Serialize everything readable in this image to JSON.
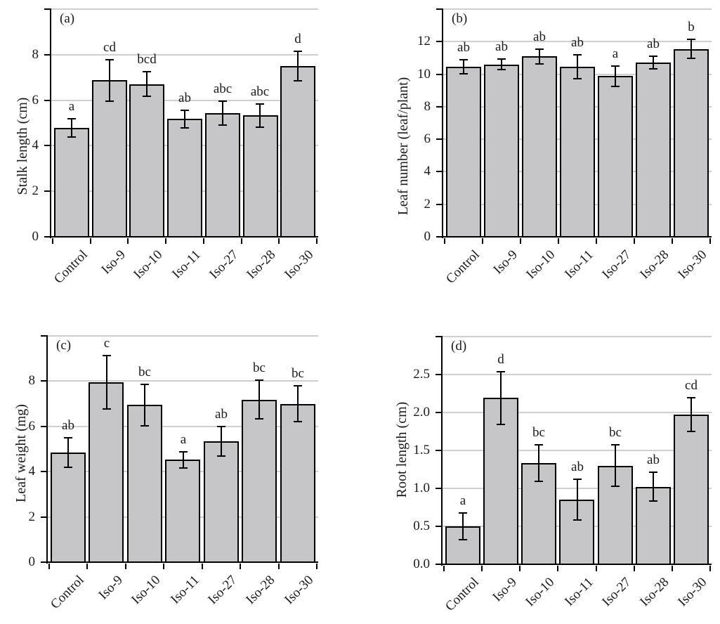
{
  "figure": {
    "description": "Four-panel bar chart comparing plant growth traits of Control vs isolate treatments, with standard-error bars and significance letters",
    "colors": {
      "background": "#ffffff",
      "bar_fill": "#c6c6c9",
      "bar_border": "#000000",
      "grid": "#cfcfcf",
      "text": "#1a1a1a"
    }
  },
  "chart_data": [
    {
      "type": "bar",
      "panel": "(a)",
      "ylabel": "Stalk length (cm)",
      "xlabel": "",
      "categories": [
        "Control",
        "Iso-9",
        "Iso-10",
        "Iso-11",
        "Iso-27",
        "Iso-28",
        "Iso-30"
      ],
      "values": [
        4.78,
        6.87,
        6.7,
        5.18,
        5.43,
        5.33,
        7.5
      ],
      "errors": [
        0.4,
        0.9,
        0.54,
        0.39,
        0.53,
        0.51,
        0.65
      ],
      "sig_letters": [
        "a",
        "cd",
        "bcd",
        "ab",
        "abc",
        "abc",
        "d"
      ],
      "ylim": [
        0,
        10
      ],
      "yticks": [
        0,
        2,
        4,
        6,
        8
      ],
      "ytick_labels": [
        "0",
        "2",
        "4",
        "6",
        "8"
      ],
      "gridlines": [
        2,
        4,
        6,
        8,
        10
      ],
      "grid": "horizontal",
      "legend": "none",
      "error_bars": "symmetric, capped"
    },
    {
      "type": "bar",
      "panel": "(b)",
      "ylabel": "Leaf number (leaf/plant)",
      "xlabel": "",
      "categories": [
        "Control",
        "Iso-9",
        "Iso-10",
        "Iso-11",
        "Iso-27",
        "Iso-28",
        "Iso-30"
      ],
      "values": [
        10.45,
        10.6,
        11.1,
        10.45,
        9.88,
        10.72,
        11.55
      ],
      "errors": [
        0.42,
        0.33,
        0.45,
        0.72,
        0.62,
        0.4,
        0.58
      ],
      "sig_letters": [
        "ab",
        "ab",
        "ab",
        "ab",
        "a",
        "ab",
        "b"
      ],
      "ylim": [
        0,
        14
      ],
      "yticks": [
        0,
        2,
        4,
        6,
        8,
        10,
        12
      ],
      "ytick_labels": [
        "0",
        "2",
        "4",
        "6",
        "8",
        "10",
        "12"
      ],
      "gridlines": [
        2,
        4,
        6,
        8,
        10,
        12,
        14
      ],
      "grid": "horizontal",
      "legend": "none",
      "error_bars": "symmetric, capped"
    },
    {
      "type": "bar",
      "panel": "(c)",
      "ylabel": "Leaf weight (mg)",
      "xlabel": "",
      "categories": [
        "Control",
        "Iso-9",
        "Iso-10",
        "Iso-11",
        "Iso-27",
        "Iso-28",
        "Iso-30"
      ],
      "values": [
        4.85,
        7.95,
        6.95,
        4.52,
        5.33,
        7.18,
        7.0
      ],
      "errors": [
        0.65,
        1.18,
        0.92,
        0.37,
        0.65,
        0.85,
        0.78
      ],
      "sig_letters": [
        "ab",
        "c",
        "bc",
        "a",
        "ab",
        "bc",
        "bc"
      ],
      "ylim": [
        0,
        10
      ],
      "yticks": [
        0,
        2,
        4,
        6,
        8
      ],
      "ytick_labels": [
        "0",
        "2",
        "4",
        "6",
        "8"
      ],
      "gridlines": [
        2,
        4,
        6,
        8,
        10
      ],
      "grid": "horizontal",
      "legend": "none",
      "error_bars": "symmetric, capped"
    },
    {
      "type": "bar",
      "panel": "(d)",
      "ylabel": "Root length (cm)",
      "xlabel": "",
      "categories": [
        "Control",
        "Iso-9",
        "Iso-10",
        "Iso-11",
        "Iso-27",
        "Iso-28",
        "Iso-30"
      ],
      "values": [
        0.5,
        2.19,
        1.33,
        0.85,
        1.3,
        1.02,
        1.97
      ],
      "errors": [
        0.18,
        0.35,
        0.24,
        0.27,
        0.27,
        0.19,
        0.22
      ],
      "sig_letters": [
        "a",
        "d",
        "bc",
        "ab",
        "bc",
        "ab",
        "cd"
      ],
      "ylim": [
        0,
        3
      ],
      "yticks": [
        0,
        0.5,
        1.0,
        1.5,
        2.0,
        2.5
      ],
      "ytick_labels": [
        "0.0",
        "0.5",
        "1.0",
        "1.5",
        "2.0",
        "2.5"
      ],
      "gridlines": [
        0.5,
        1.0,
        1.5,
        2.0,
        2.5,
        3.0
      ],
      "grid": "horizontal",
      "legend": "none",
      "error_bars": "symmetric, capped"
    }
  ]
}
